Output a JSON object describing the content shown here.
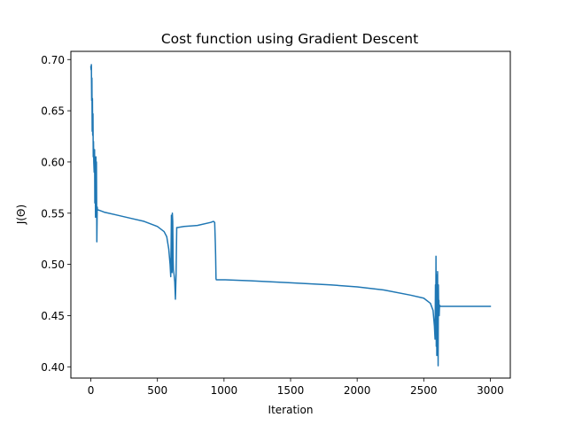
{
  "chart_data": {
    "type": "line",
    "title": "Cost function using Gradient Descent",
    "xlabel": "Iteration",
    "ylabel": "J(Θ)",
    "xlim": [
      -150,
      3150
    ],
    "ylim": [
      0.389,
      0.708
    ],
    "xticks": [
      0,
      500,
      1000,
      1500,
      2000,
      2500,
      3000
    ],
    "xtick_labels": [
      "0",
      "500",
      "1000",
      "1500",
      "2000",
      "2500",
      "3000"
    ],
    "yticks": [
      0.4,
      0.45,
      0.5,
      0.55,
      0.6,
      0.65,
      0.7
    ],
    "ytick_labels": [
      "0.40",
      "0.45",
      "0.50",
      "0.55",
      "0.60",
      "0.65",
      "0.70"
    ],
    "grid": false,
    "line_color": "#1f77b4",
    "series": [
      {
        "x": [
          0,
          2,
          4,
          6,
          8,
          10,
          12,
          14,
          16,
          18,
          20,
          22,
          25,
          28,
          30,
          32,
          35,
          38,
          40,
          42,
          45,
          48,
          50,
          52,
          55,
          60,
          100,
          200,
          300,
          400,
          500,
          550,
          570,
          585,
          595,
          600,
          605,
          610,
          612,
          615,
          618,
          620,
          625,
          630,
          635,
          640,
          645,
          650,
          700,
          800,
          900,
          920,
          930,
          935,
          937,
          940,
          942,
          945,
          950,
          1000,
          1200,
          1500,
          1800,
          2000,
          2200,
          2400,
          2500,
          2550,
          2570,
          2580,
          2585,
          2588,
          2590,
          2592,
          2594,
          2596,
          2598,
          2600,
          2602,
          2604,
          2606,
          2608,
          2610,
          2612,
          2614,
          2616,
          2618,
          2620,
          2625,
          2700,
          2800,
          2900,
          3000
        ],
        "y": [
          0.693,
          0.69,
          0.695,
          0.66,
          0.682,
          0.63,
          0.662,
          0.626,
          0.647,
          0.605,
          0.62,
          0.6,
          0.59,
          0.612,
          0.56,
          0.598,
          0.546,
          0.605,
          0.55,
          0.6,
          0.522,
          0.556,
          0.553,
          0.553,
          0.553,
          0.553,
          0.551,
          0.548,
          0.545,
          0.542,
          0.537,
          0.532,
          0.527,
          0.515,
          0.5,
          0.488,
          0.548,
          0.492,
          0.55,
          0.542,
          0.505,
          0.495,
          0.49,
          0.483,
          0.466,
          0.49,
          0.536,
          0.536,
          0.537,
          0.538,
          0.541,
          0.542,
          0.541,
          0.52,
          0.509,
          0.486,
          0.485,
          0.485,
          0.485,
          0.485,
          0.484,
          0.482,
          0.48,
          0.478,
          0.475,
          0.47,
          0.467,
          0.462,
          0.455,
          0.44,
          0.427,
          0.48,
          0.434,
          0.508,
          0.42,
          0.49,
          0.411,
          0.46,
          0.415,
          0.493,
          0.44,
          0.401,
          0.48,
          0.456,
          0.465,
          0.45,
          0.458,
          0.46,
          0.459,
          0.459,
          0.459,
          0.459,
          0.459
        ]
      }
    ]
  }
}
